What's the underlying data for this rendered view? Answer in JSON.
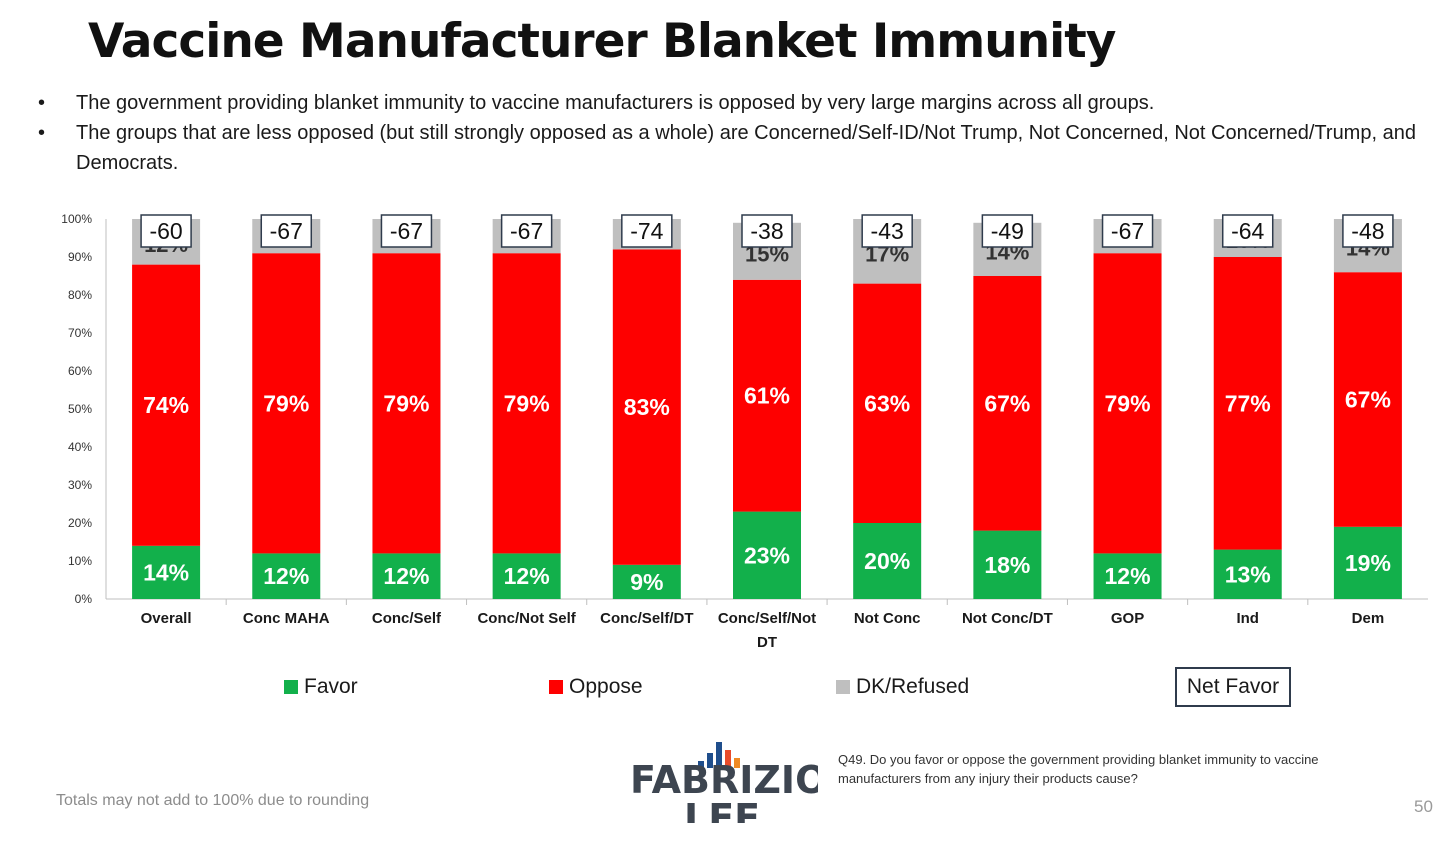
{
  "slide": {
    "title": "Vaccine Manufacturer Blanket Immunity",
    "bullets": [
      "The government providing blanket immunity to vaccine manufacturers is opposed by very large margins across all groups.",
      "The groups that are less opposed (but still strongly opposed as a whole) are Concerned/Self-ID/Not Trump, Not Concerned, Not Concerned/Trump, and Democrats."
    ],
    "footnote": "Totals may not add to 100% due to rounding",
    "question": "Q49. Do you favor or oppose the government providing blanket immunity to vaccine manufacturers from any injury their products cause?",
    "page_number": "50",
    "logo": {
      "line1": "FABRIZIO",
      "line2": "LEE"
    },
    "colors": {
      "favor": "#12b04b",
      "oppose": "#fe0000",
      "dk": "#bfbfbf",
      "net_box_border": "#2f3b4c",
      "logo_text": "#3d4550"
    }
  },
  "legend": {
    "favor": "Favor",
    "oppose": "Oppose",
    "dk": "DK/Refused",
    "net": "Net Favor"
  },
  "chart_data": {
    "type": "bar",
    "stacked": true,
    "title": "Vaccine Manufacturer Blanket Immunity",
    "ylim": [
      0,
      100
    ],
    "y_ticks": [
      "0%",
      "10%",
      "20%",
      "30%",
      "40%",
      "50%",
      "60%",
      "70%",
      "80%",
      "90%",
      "100%"
    ],
    "categories": [
      "Overall",
      "Conc MAHA",
      "Conc/Self",
      "Conc/Not Self",
      "Conc/Self/DT",
      "Conc/Self/Not DT",
      "Not Conc",
      "Not Conc/DT",
      "GOP",
      "Ind",
      "Dem"
    ],
    "series": [
      {
        "name": "Favor",
        "values": [
          14,
          12,
          12,
          12,
          9,
          23,
          20,
          18,
          12,
          13,
          19
        ]
      },
      {
        "name": "Oppose",
        "values": [
          74,
          79,
          79,
          79,
          83,
          61,
          63,
          67,
          79,
          77,
          67
        ]
      },
      {
        "name": "DK/Refused",
        "values": [
          12,
          9,
          9,
          9,
          8,
          15,
          17,
          14,
          9,
          10,
          14
        ]
      }
    ],
    "net_favor": [
      -60,
      -67,
      -67,
      -67,
      -74,
      -38,
      -43,
      -49,
      -67,
      -64,
      -48
    ]
  }
}
